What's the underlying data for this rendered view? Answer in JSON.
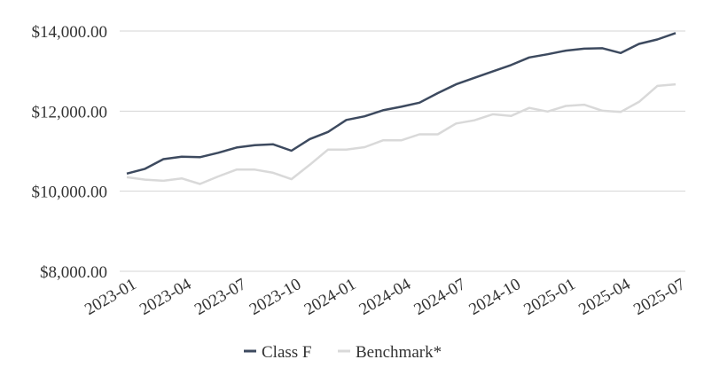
{
  "chart_data": {
    "type": "line",
    "title": "",
    "xlabel": "",
    "ylabel": "",
    "x": [
      "2023-01",
      "2023-02",
      "2023-03",
      "2023-04",
      "2023-05",
      "2023-06",
      "2023-07",
      "2023-08",
      "2023-09",
      "2023-10",
      "2023-11",
      "2023-12",
      "2024-01",
      "2024-02",
      "2024-03",
      "2024-04",
      "2024-05",
      "2024-06",
      "2024-07",
      "2024-08",
      "2024-09",
      "2024-10",
      "2024-11",
      "2024-12",
      "2025-01",
      "2025-02",
      "2025-03",
      "2025-04",
      "2025-05",
      "2025-06",
      "2025-07"
    ],
    "x_tick_labels": [
      "2023-01",
      "2023-04",
      "2023-07",
      "2023-10",
      "2024-01",
      "2024-04",
      "2024-07",
      "2024-10",
      "2025-01",
      "2025-04",
      "2025-07"
    ],
    "ylim": [
      8000,
      14000
    ],
    "y_ticks": [
      8000,
      10000,
      12000,
      14000
    ],
    "y_tick_labels": [
      "$8,000.00",
      "$10,000.00",
      "$12,000.00",
      "$14,000.00"
    ],
    "grid": true,
    "legend_position": "bottom-center",
    "series": [
      {
        "name": "Class F",
        "color": "#3d4a5f",
        "values": [
          10440,
          10560,
          10800,
          10860,
          10850,
          10960,
          11090,
          11150,
          11170,
          11010,
          11300,
          11480,
          11780,
          11870,
          12020,
          12110,
          12210,
          12450,
          12670,
          12830,
          12990,
          13150,
          13340,
          13420,
          13510,
          13560,
          13570,
          13450,
          13680,
          13790,
          13950
        ]
      },
      {
        "name": "Benchmark*",
        "color": "#d9d9d9",
        "values": [
          10350,
          10290,
          10260,
          10320,
          10180,
          10370,
          10540,
          10540,
          10460,
          10300,
          10660,
          11040,
          11040,
          11100,
          11270,
          11270,
          11420,
          11420,
          11690,
          11770,
          11920,
          11880,
          12080,
          11990,
          12130,
          12160,
          12010,
          11980,
          12230,
          12630,
          12670
        ]
      }
    ]
  }
}
